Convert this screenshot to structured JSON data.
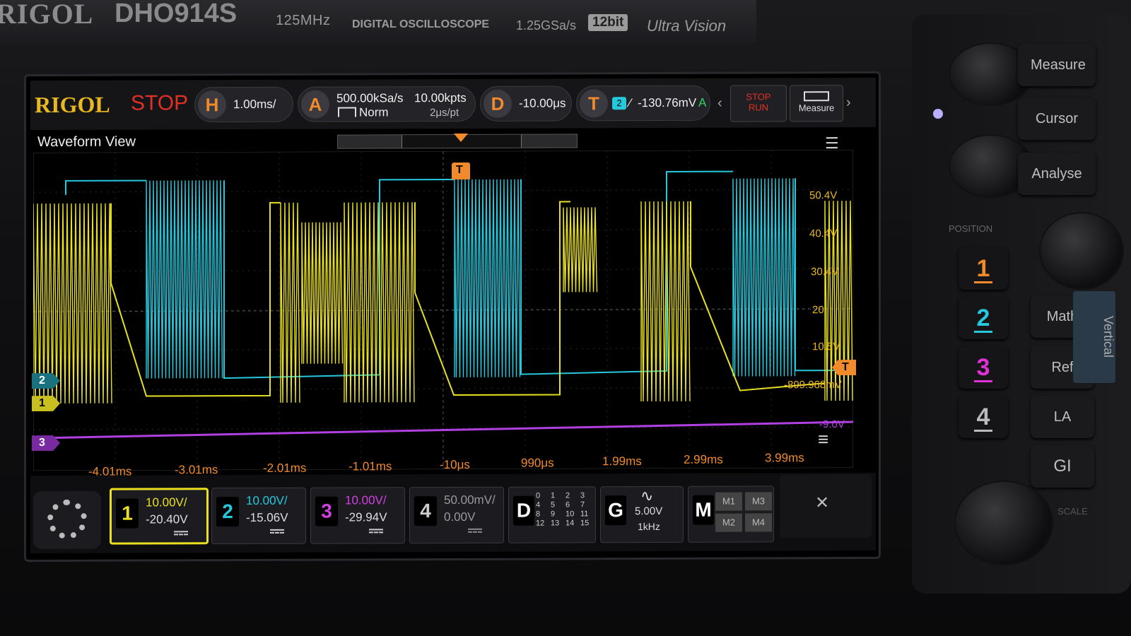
{
  "device": {
    "brand": "RIGOL",
    "model": "DHO914S",
    "bandwidth": "125MHz",
    "description": "DIGITAL OSCILLOSCOPE",
    "sample_rate": "1.25GSa/s",
    "resolution": "12bit",
    "series": "Ultra Vision"
  },
  "topbar": {
    "logo": "RIGOL",
    "state": "STOP",
    "horizontal": {
      "badge": "H",
      "scale": "1.00ms/"
    },
    "acquire": {
      "badge": "A",
      "rate": "500.00kSa/s",
      "mode": "Norm",
      "depth": "10.00kpts",
      "per_point": "2μs/pt"
    },
    "delay": {
      "badge": "D",
      "value": "-10.00μs"
    },
    "trigger": {
      "badge": "T",
      "source": "2",
      "level": "-130.76mV",
      "mode": "A"
    },
    "stop_run": {
      "line1": "STOP",
      "line2": "RUN"
    },
    "measure_label": "Measure"
  },
  "waveform": {
    "title": "Waveform View",
    "time_labels": [
      "-4.01ms",
      "-3.01ms",
      "-2.01ms",
      "-1.01ms",
      "-10μs",
      "990μs",
      "1.99ms",
      "2.99ms",
      "3.99ms"
    ],
    "volt_labels": [
      "50.4V",
      "40.4V",
      "30.4V",
      "20",
      "10.5V",
      "-899.968mV",
      "-9.0V"
    ],
    "markers": [
      "2",
      "1",
      "3",
      "T"
    ],
    "colors": {
      "ch1": "#e8e020",
      "ch2": "#25c8dc",
      "ch3": "#b040e0",
      "trigger": "#f08a2c"
    }
  },
  "bottombar": {
    "ch1": {
      "num": "1",
      "scale": "10.00V/",
      "offset": "-20.40V"
    },
    "ch2": {
      "num": "2",
      "scale": "10.00V/",
      "offset": "-15.06V"
    },
    "ch3": {
      "num": "3",
      "scale": "10.00V/",
      "offset": "-29.94V"
    },
    "ch4": {
      "num": "4",
      "scale": "50.00mV/",
      "offset": "0.00V"
    },
    "digital": {
      "badge": "D",
      "channels": [
        "0",
        "1",
        "2",
        "3",
        "4",
        "5",
        "6",
        "7",
        "8",
        "9",
        "10",
        "11",
        "12",
        "13",
        "14",
        "15"
      ]
    },
    "generator": {
      "badge": "G",
      "amplitude": "5.00V",
      "frequency": "1kHz"
    },
    "math": {
      "badge": "M",
      "items": [
        "M1",
        "M3",
        "M2",
        "M4"
      ]
    }
  },
  "panel": {
    "measure": "Measure",
    "cursor": "Cursor",
    "analyse": "Analyse",
    "position": "POSITION",
    "math": "Math",
    "ref": "Ref",
    "la": "LA",
    "gi": "GI",
    "vertical": "Vertical",
    "scale": "SCALE",
    "channels": [
      "1",
      "2",
      "3",
      "4"
    ]
  }
}
